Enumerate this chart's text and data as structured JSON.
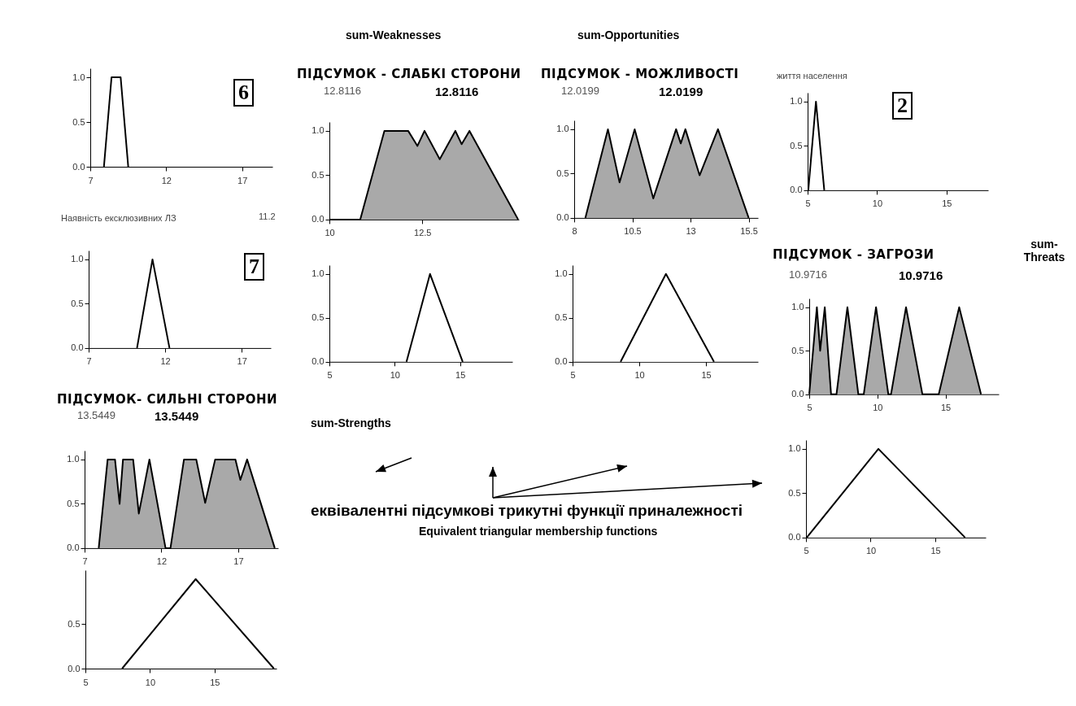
{
  "chart_data": [
    {
      "type": "area",
      "annotations": [
        "6"
      ],
      "x": [
        7.9,
        8.4,
        9.0,
        9.5
      ],
      "series": [
        {
          "color": "#ffffff",
          "values": [
            0,
            1,
            1,
            0
          ]
        }
      ],
      "xlim": [
        7,
        19
      ],
      "xticks": [
        7,
        12,
        17
      ],
      "ylim": [
        0,
        1.1
      ],
      "yticks": [
        {
          "value": 0,
          "label": "0.0"
        },
        {
          "value": 0.5,
          "label": "0.5"
        },
        {
          "value": 1,
          "label": "1.0"
        }
      ]
    },
    {
      "type": "area",
      "title": "Наявність ексклюзивних ЛЗ",
      "annotations": [
        "11.2",
        "7"
      ],
      "x": [
        10.16,
        11.17,
        12.28
      ],
      "series": [
        {
          "color": "#ffffff",
          "values": [
            0,
            1,
            0
          ]
        }
      ],
      "xlim": [
        7,
        18.9
      ],
      "xticks": [
        7,
        12,
        17
      ],
      "ylim": [
        0,
        1.1
      ],
      "yticks": [
        {
          "value": 0,
          "label": "0.0"
        },
        {
          "value": 0.5,
          "label": "0.5"
        },
        {
          "value": 1,
          "label": "1.0"
        }
      ]
    },
    {
      "type": "area",
      "title": "ПІДСУМОК - СЛАБКІ СТОРОНИ",
      "annotations": [
        "12.8116",
        "12.8116"
      ],
      "x": [
        10,
        10.83,
        11.48,
        12.12,
        12.37,
        12.56,
        12.97,
        13.39,
        13.56,
        13.77,
        15.08
      ],
      "series": [
        {
          "color": "#a9a9a9",
          "values": [
            0,
            0,
            1,
            1,
            0.83,
            1,
            0.68,
            1,
            0.85,
            1,
            0
          ]
        }
      ],
      "xlim": [
        10,
        15.1
      ],
      "xticks": [
        10,
        12.5
      ],
      "ylim": [
        0,
        1.1
      ],
      "yticks": [
        {
          "value": 0,
          "label": "0.0"
        },
        {
          "value": 0.5,
          "label": "0.5"
        },
        {
          "value": 1,
          "label": "1.0"
        }
      ]
    },
    {
      "type": "area",
      "title": "ПІДСУМОК - МОЖЛИВОСТІ",
      "annotations": [
        "12.0199",
        "12.0199"
      ],
      "x": [
        8.48,
        9.45,
        9.95,
        10.6,
        11.4,
        12.38,
        12.58,
        12.78,
        13.39,
        14.18,
        15.5
      ],
      "series": [
        {
          "color": "#a9a9a9",
          "values": [
            0,
            1,
            0.4,
            1,
            0.22,
            1,
            0.84,
            1,
            0.48,
            1,
            0
          ]
        }
      ],
      "xlim": [
        8,
        15.9
      ],
      "xticks": [
        8,
        10.5,
        13,
        15.5
      ],
      "ylim": [
        0,
        1.1
      ],
      "yticks": [
        {
          "value": 0,
          "label": "0.0"
        },
        {
          "value": 0.5,
          "label": "0.5"
        },
        {
          "value": 1,
          "label": "1.0"
        }
      ]
    },
    {
      "type": "area",
      "x": [
        10.9,
        12.7,
        15.2
      ],
      "series": [
        {
          "color": "#ffffff",
          "values": [
            0,
            1,
            0
          ]
        }
      ],
      "xlim": [
        5,
        19
      ],
      "xticks": [
        5,
        10,
        15
      ],
      "ylim": [
        0,
        1.1
      ],
      "yticks": [
        {
          "value": 0,
          "label": "0.0"
        },
        {
          "value": 0.5,
          "label": "0.5"
        },
        {
          "value": 1,
          "label": "1.0"
        }
      ]
    },
    {
      "type": "area",
      "x": [
        8.6,
        12.0,
        15.6
      ],
      "series": [
        {
          "color": "#ffffff",
          "values": [
            0,
            1,
            0
          ]
        }
      ],
      "xlim": [
        5,
        18.9
      ],
      "xticks": [
        5,
        10,
        15
      ],
      "ylim": [
        0,
        1.1
      ],
      "yticks": [
        {
          "value": 0,
          "label": "0.0"
        },
        {
          "value": 0.5,
          "label": "0.5"
        },
        {
          "value": 1,
          "label": "1.0"
        }
      ]
    },
    {
      "type": "area",
      "title": "життя населення",
      "annotations": [
        "2"
      ],
      "x": [
        5.05,
        5.6,
        6.2
      ],
      "series": [
        {
          "color": "#ffffff",
          "values": [
            0,
            1,
            0
          ]
        }
      ],
      "xlim": [
        5,
        18
      ],
      "xticks": [
        5,
        10,
        15
      ],
      "ylim": [
        0,
        1.1
      ],
      "yticks": [
        {
          "value": 0,
          "label": "0.0"
        },
        {
          "value": 0.5,
          "label": "0.5"
        },
        {
          "value": 1,
          "label": "1.0"
        }
      ]
    },
    {
      "type": "area",
      "title": "ПІДСУМОК - ЗАГРОЗИ",
      "annotations": [
        "10.9716",
        "10.9716"
      ],
      "x": [
        5.0,
        5.56,
        5.8,
        6.14,
        6.6,
        7.0,
        7.8,
        8.6,
        9.0,
        9.9,
        10.8,
        11.0,
        12.1,
        13.3,
        14.5,
        16.0,
        17.6
      ],
      "series": [
        {
          "color": "#a9a9a9",
          "values": [
            0,
            1,
            0.5,
            1,
            0,
            0,
            1,
            0,
            0,
            1,
            0,
            0,
            1,
            0,
            0,
            1,
            0
          ]
        }
      ],
      "xlim": [
        5,
        18.9
      ],
      "xticks": [
        5,
        10,
        15
      ],
      "ylim": [
        0,
        1.1
      ],
      "yticks": [
        {
          "value": 0,
          "label": "0.0"
        },
        {
          "value": 0.5,
          "label": "0.5"
        },
        {
          "value": 1,
          "label": "1.0"
        }
      ]
    },
    {
      "type": "area",
      "x": [
        5.06,
        10.6,
        17.3
      ],
      "series": [
        {
          "color": "#ffffff",
          "values": [
            0,
            1,
            0
          ]
        }
      ],
      "xlim": [
        5,
        18.9
      ],
      "xticks": [
        5,
        10,
        15
      ],
      "ylim": [
        0,
        1.1
      ],
      "yticks": [
        {
          "value": 0,
          "label": "0.0"
        },
        {
          "value": 0.5,
          "label": "0.5"
        },
        {
          "value": 1,
          "label": "1.0"
        }
      ]
    },
    {
      "type": "area",
      "title": "ПІДСУМОК- СИЛЬНІ СТОРОНИ",
      "annotations": [
        "13.5449",
        "13.5449"
      ],
      "x": [
        7.92,
        8.5,
        8.98,
        9.28,
        9.5,
        10.16,
        10.53,
        11.22,
        12.27,
        12.59,
        13.47,
        14.27,
        14.85,
        15.5,
        16.82,
        17.14,
        17.58,
        19.38
      ],
      "series": [
        {
          "color": "#a9a9a9",
          "values": [
            0,
            1,
            1,
            0.5,
            1,
            1,
            0.39,
            1,
            0,
            0,
            1,
            1,
            0.51,
            1,
            1,
            0.77,
            1,
            0
          ]
        }
      ],
      "xlim": [
        7,
        19.6
      ],
      "xticks": [
        7,
        12,
        17
      ],
      "ylim": [
        0,
        1.1
      ],
      "yticks": [
        {
          "value": 0,
          "label": "0.0"
        },
        {
          "value": 0.5,
          "label": "0.5"
        },
        {
          "value": 1,
          "label": "1.0"
        }
      ]
    },
    {
      "type": "area",
      "x": [
        7.84,
        13.54,
        19.6
      ],
      "series": [
        {
          "color": "#ffffff",
          "values": [
            0,
            1,
            0
          ]
        }
      ],
      "xlim": [
        5,
        19.8
      ],
      "xticks": [
        5,
        10,
        15
      ],
      "ylim": [
        0,
        1.1
      ],
      "yticks": [
        {
          "value": 0,
          "label": "0.0"
        },
        {
          "value": 0.5,
          "label": "0.5"
        }
      ]
    },
    {
      "type": "other",
      "annotations": [
        "sum-Weaknesses",
        "sum-Opportunities",
        "sum-Threats",
        "sum-Strengths",
        "еквівалентні підсумкові трикутні функції приналежності",
        "Equivalent triangular membership functions"
      ]
    }
  ]
}
